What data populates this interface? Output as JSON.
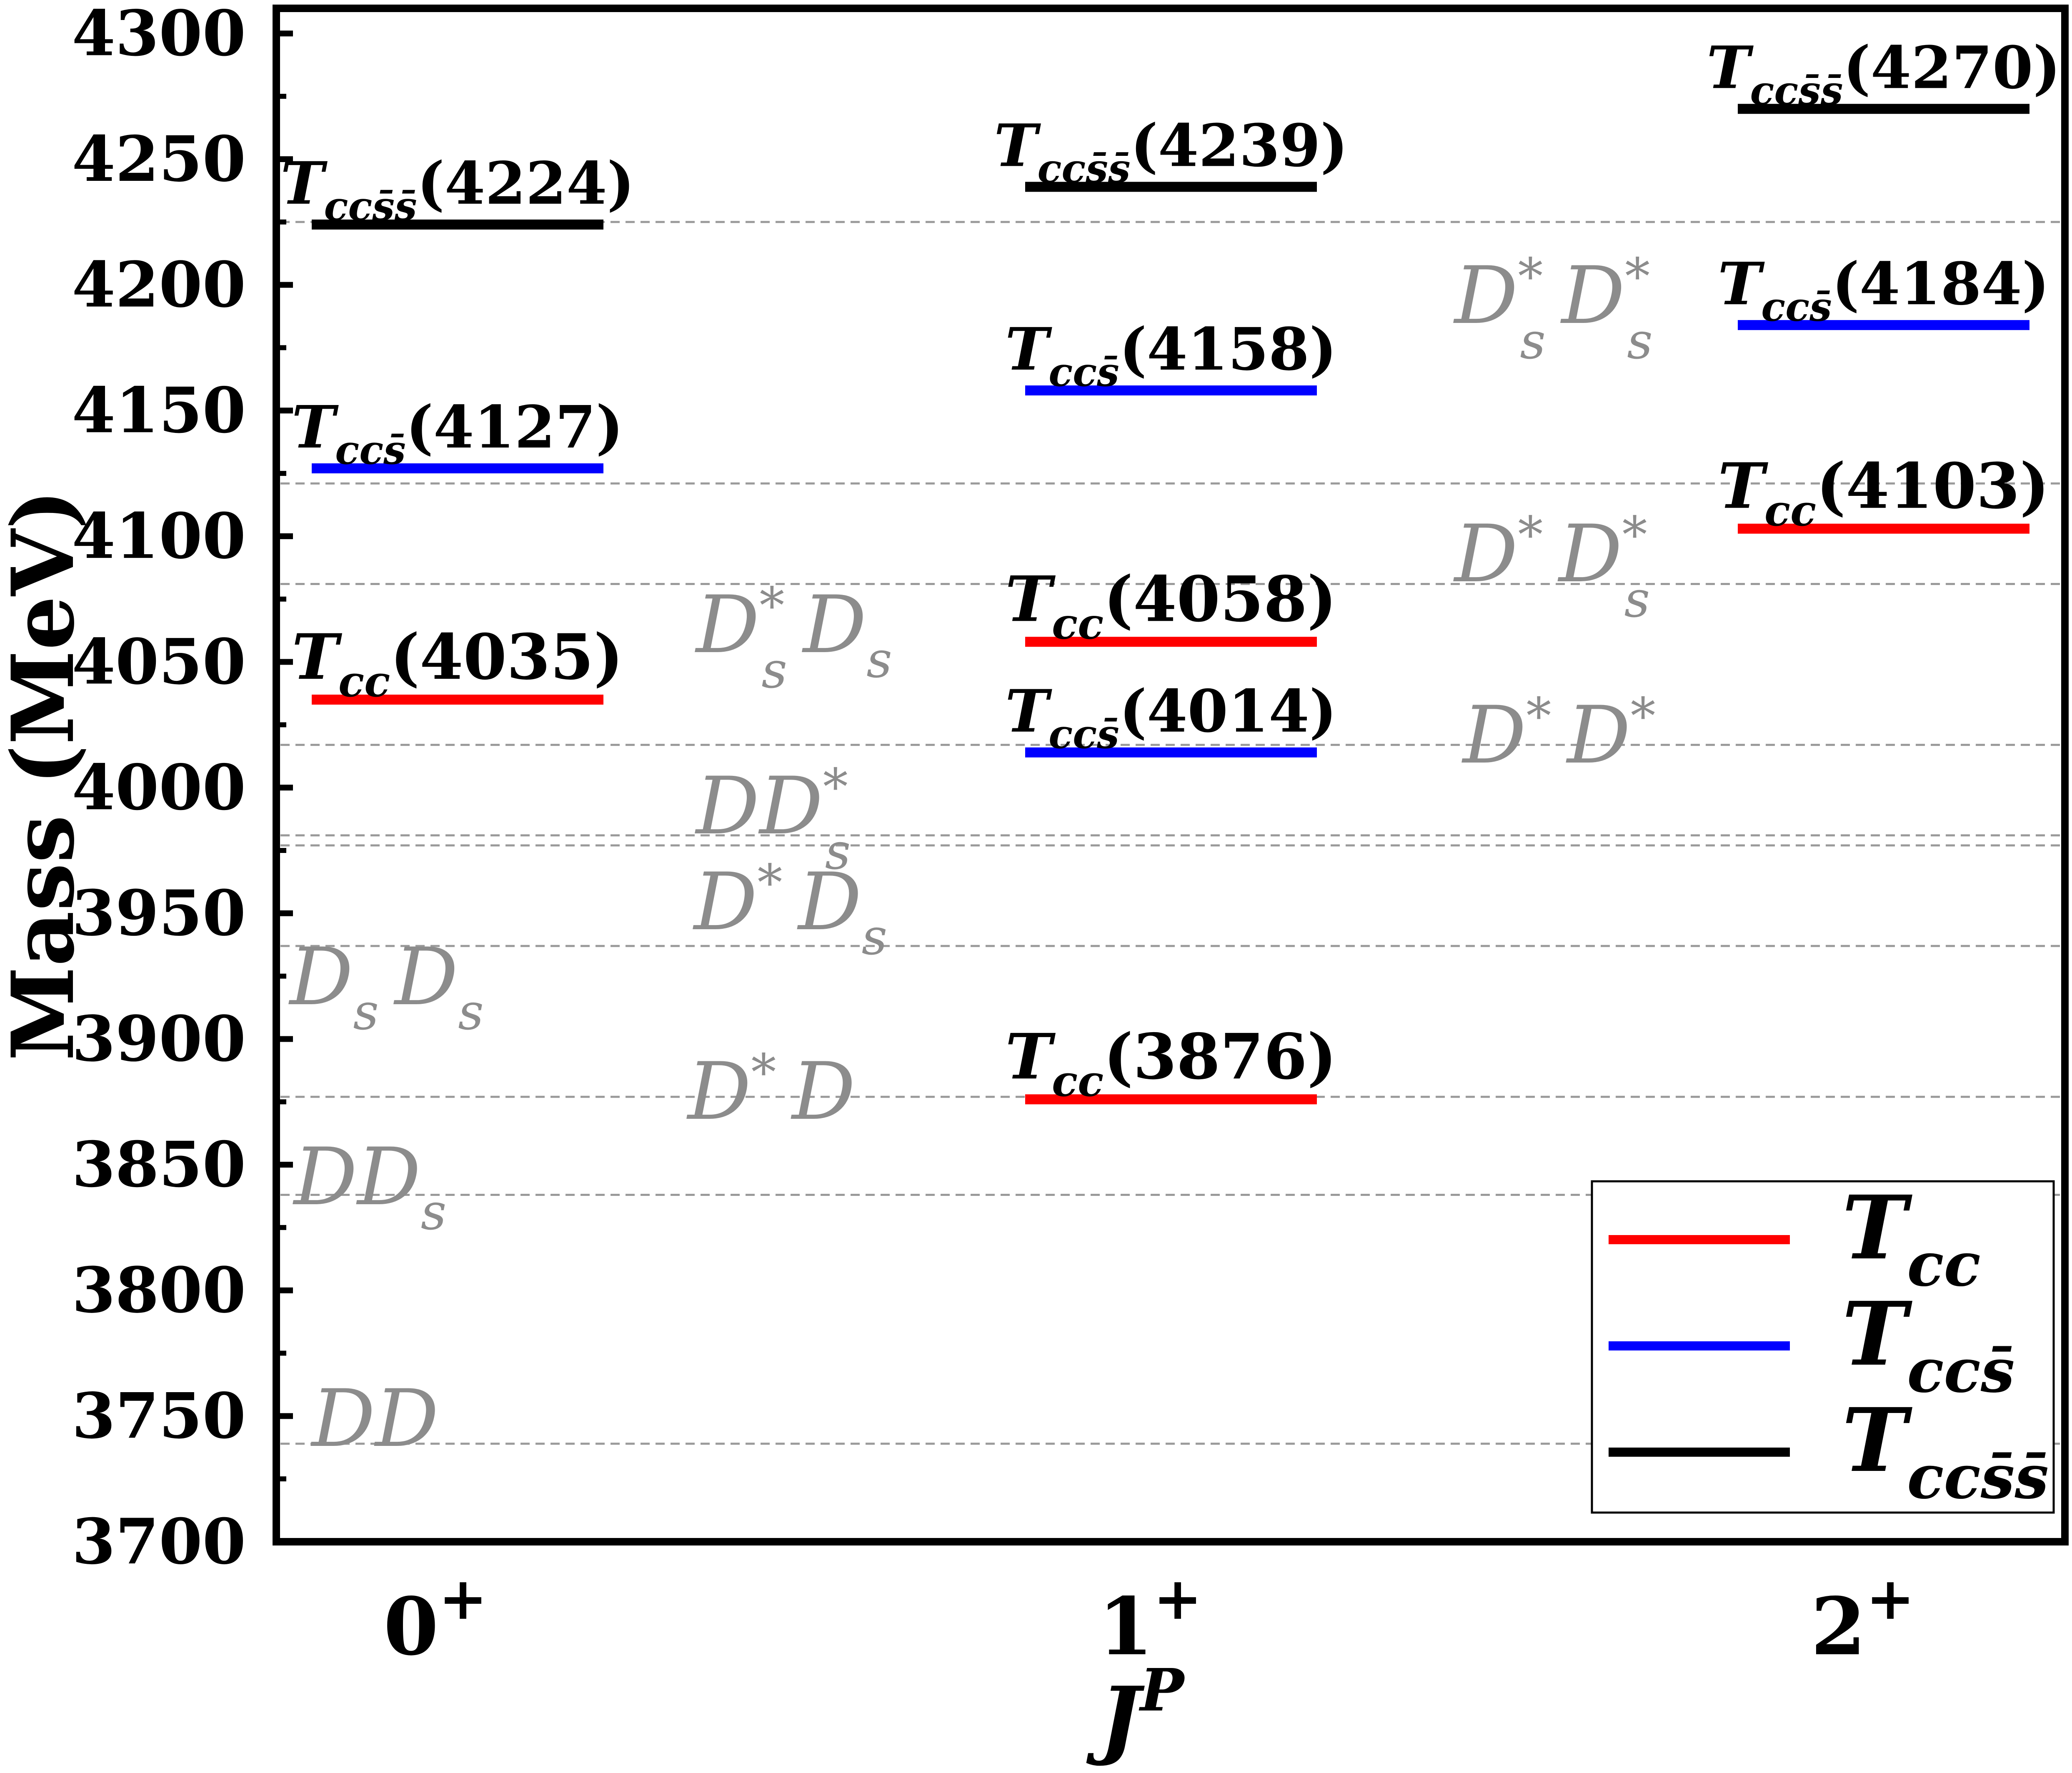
{
  "chart_data": {
    "type": "level-diagram",
    "xlabel": "J^P",
    "ylabel": "Mass (MeV)",
    "ylim": [
      3700,
      4310
    ],
    "yticks": [
      3700,
      3750,
      3800,
      3850,
      3900,
      3950,
      4000,
      4050,
      4100,
      4150,
      4200,
      4250,
      4300
    ],
    "categories": [
      "0+",
      "1+",
      "2+"
    ],
    "colors": {
      "Tcc": "#ff0000",
      "Tccs": "#0000ff",
      "Tccss": "#000000",
      "threshold": "#9a9a9a",
      "threshold_text": "#8c8c8c"
    },
    "levels": [
      {
        "series": "Tcc",
        "jp": "0+",
        "mass": 4035,
        "label": "Tcc(4035)"
      },
      {
        "series": "Tccs",
        "jp": "0+",
        "mass": 4127,
        "label": "Tccs̄(4127)"
      },
      {
        "series": "Tccss",
        "jp": "0+",
        "mass": 4224,
        "label": "Tccs̄s̄(4224)"
      },
      {
        "series": "Tcc",
        "jp": "1+",
        "mass": 3876,
        "label": "Tcc(3876)"
      },
      {
        "series": "Tccs",
        "jp": "1+",
        "mass": 4014,
        "label": "Tccs̄(4014)"
      },
      {
        "series": "Tcc",
        "jp": "1+",
        "mass": 4058,
        "label": "Tcc(4058)"
      },
      {
        "series": "Tccs",
        "jp": "1+",
        "mass": 4158,
        "label": "Tccs̄(4158)"
      },
      {
        "series": "Tccss",
        "jp": "1+",
        "mass": 4239,
        "label": "Tccs̄s̄(4239)"
      },
      {
        "series": "Tcc",
        "jp": "2+",
        "mass": 4103,
        "label": "Tcc(4103)"
      },
      {
        "series": "Tccs",
        "jp": "2+",
        "mass": 4184,
        "label": "Tccs̄(4184)"
      },
      {
        "series": "Tccss",
        "jp": "2+",
        "mass": 4270,
        "label": "Tccs̄s̄(4270)"
      }
    ],
    "thresholds": [
      {
        "mass": 3739,
        "label": "DD"
      },
      {
        "mass": 3838,
        "label": "DDs"
      },
      {
        "mass": 3877,
        "label": "D*D"
      },
      {
        "mass": 3937,
        "label": "DsDs"
      },
      {
        "mass": 3977,
        "label": "D*Ds"
      },
      {
        "mass": 3981,
        "label": "DD*s"
      },
      {
        "mass": 4017,
        "label": "D*D*"
      },
      {
        "mass": 4081,
        "label": "D*sDs"
      },
      {
        "mass": 4121,
        "label": "D*D*s"
      },
      {
        "mass": 4225,
        "label": "D*sD*s"
      }
    ],
    "legend": {
      "position": "bottom-right",
      "entries": [
        {
          "series": "Tcc",
          "label": "Tcc"
        },
        {
          "series": "Tccs",
          "label": "Tccs̄"
        },
        {
          "series": "Tccss",
          "label": "Tccs̄s̄"
        }
      ]
    }
  }
}
